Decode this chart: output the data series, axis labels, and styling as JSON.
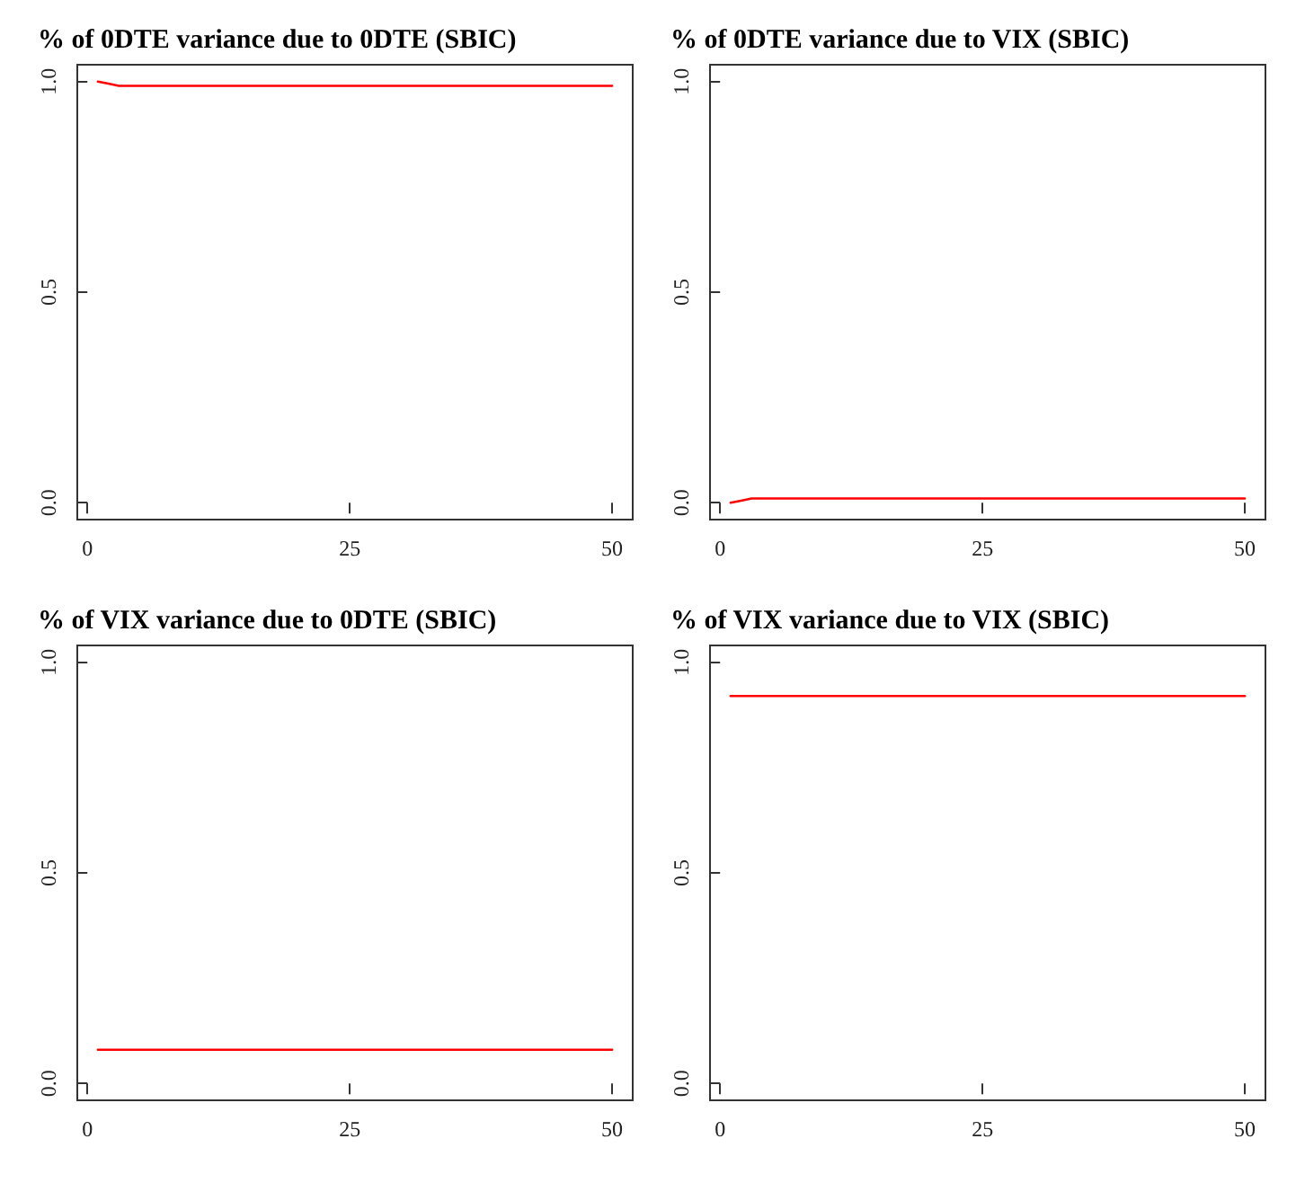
{
  "chart_data": [
    {
      "type": "line",
      "title": "% of 0DTE variance due to 0DTE (SBIC)",
      "x": [
        1,
        2,
        3,
        50
      ],
      "series": [
        {
          "color": "#ff0000",
          "values": [
            1,
            0.995,
            0.99,
            0.99
          ]
        }
      ],
      "xlim": [
        -0.96,
        51.96
      ],
      "xticks": [
        0,
        25,
        50
      ],
      "ylim": [
        -0.04,
        1.04
      ],
      "yticks": [
        {
          "value": 0,
          "label": "0.0"
        },
        {
          "value": 0.5,
          "label": "0.5"
        },
        {
          "value": 1,
          "label": "1.0"
        }
      ],
      "grid": false
    },
    {
      "type": "line",
      "title": "% of 0DTE variance due to VIX (SBIC)",
      "x": [
        1,
        2,
        3,
        50
      ],
      "series": [
        {
          "color": "#ff0000",
          "values": [
            0,
            0.005,
            0.01,
            0.01
          ]
        }
      ],
      "xlim": [
        -0.96,
        51.96
      ],
      "xticks": [
        0,
        25,
        50
      ],
      "ylim": [
        -0.04,
        1.04
      ],
      "yticks": [
        {
          "value": 0,
          "label": "0.0"
        },
        {
          "value": 0.5,
          "label": "0.5"
        },
        {
          "value": 1,
          "label": "1.0"
        }
      ],
      "grid": false
    },
    {
      "type": "line",
      "title": "% of VIX variance due to 0DTE (SBIC)",
      "x": [
        1,
        50
      ],
      "series": [
        {
          "color": "#ff0000",
          "values": [
            0.08,
            0.08
          ]
        }
      ],
      "xlim": [
        -0.96,
        51.96
      ],
      "xticks": [
        0,
        25,
        50
      ],
      "ylim": [
        -0.04,
        1.04
      ],
      "yticks": [
        {
          "value": 0,
          "label": "0.0"
        },
        {
          "value": 0.5,
          "label": "0.5"
        },
        {
          "value": 1,
          "label": "1.0"
        }
      ],
      "grid": false
    },
    {
      "type": "line",
      "title": "% of VIX variance due to VIX (SBIC)",
      "x": [
        1,
        50
      ],
      "series": [
        {
          "color": "#ff0000",
          "values": [
            0.92,
            0.92
          ]
        }
      ],
      "xlim": [
        -0.96,
        51.96
      ],
      "xticks": [
        0,
        25,
        50
      ],
      "ylim": [
        -0.04,
        1.04
      ],
      "yticks": [
        {
          "value": 0,
          "label": "0.0"
        },
        {
          "value": 0.5,
          "label": "0.5"
        },
        {
          "value": 1,
          "label": "1.0"
        }
      ],
      "grid": false
    }
  ]
}
